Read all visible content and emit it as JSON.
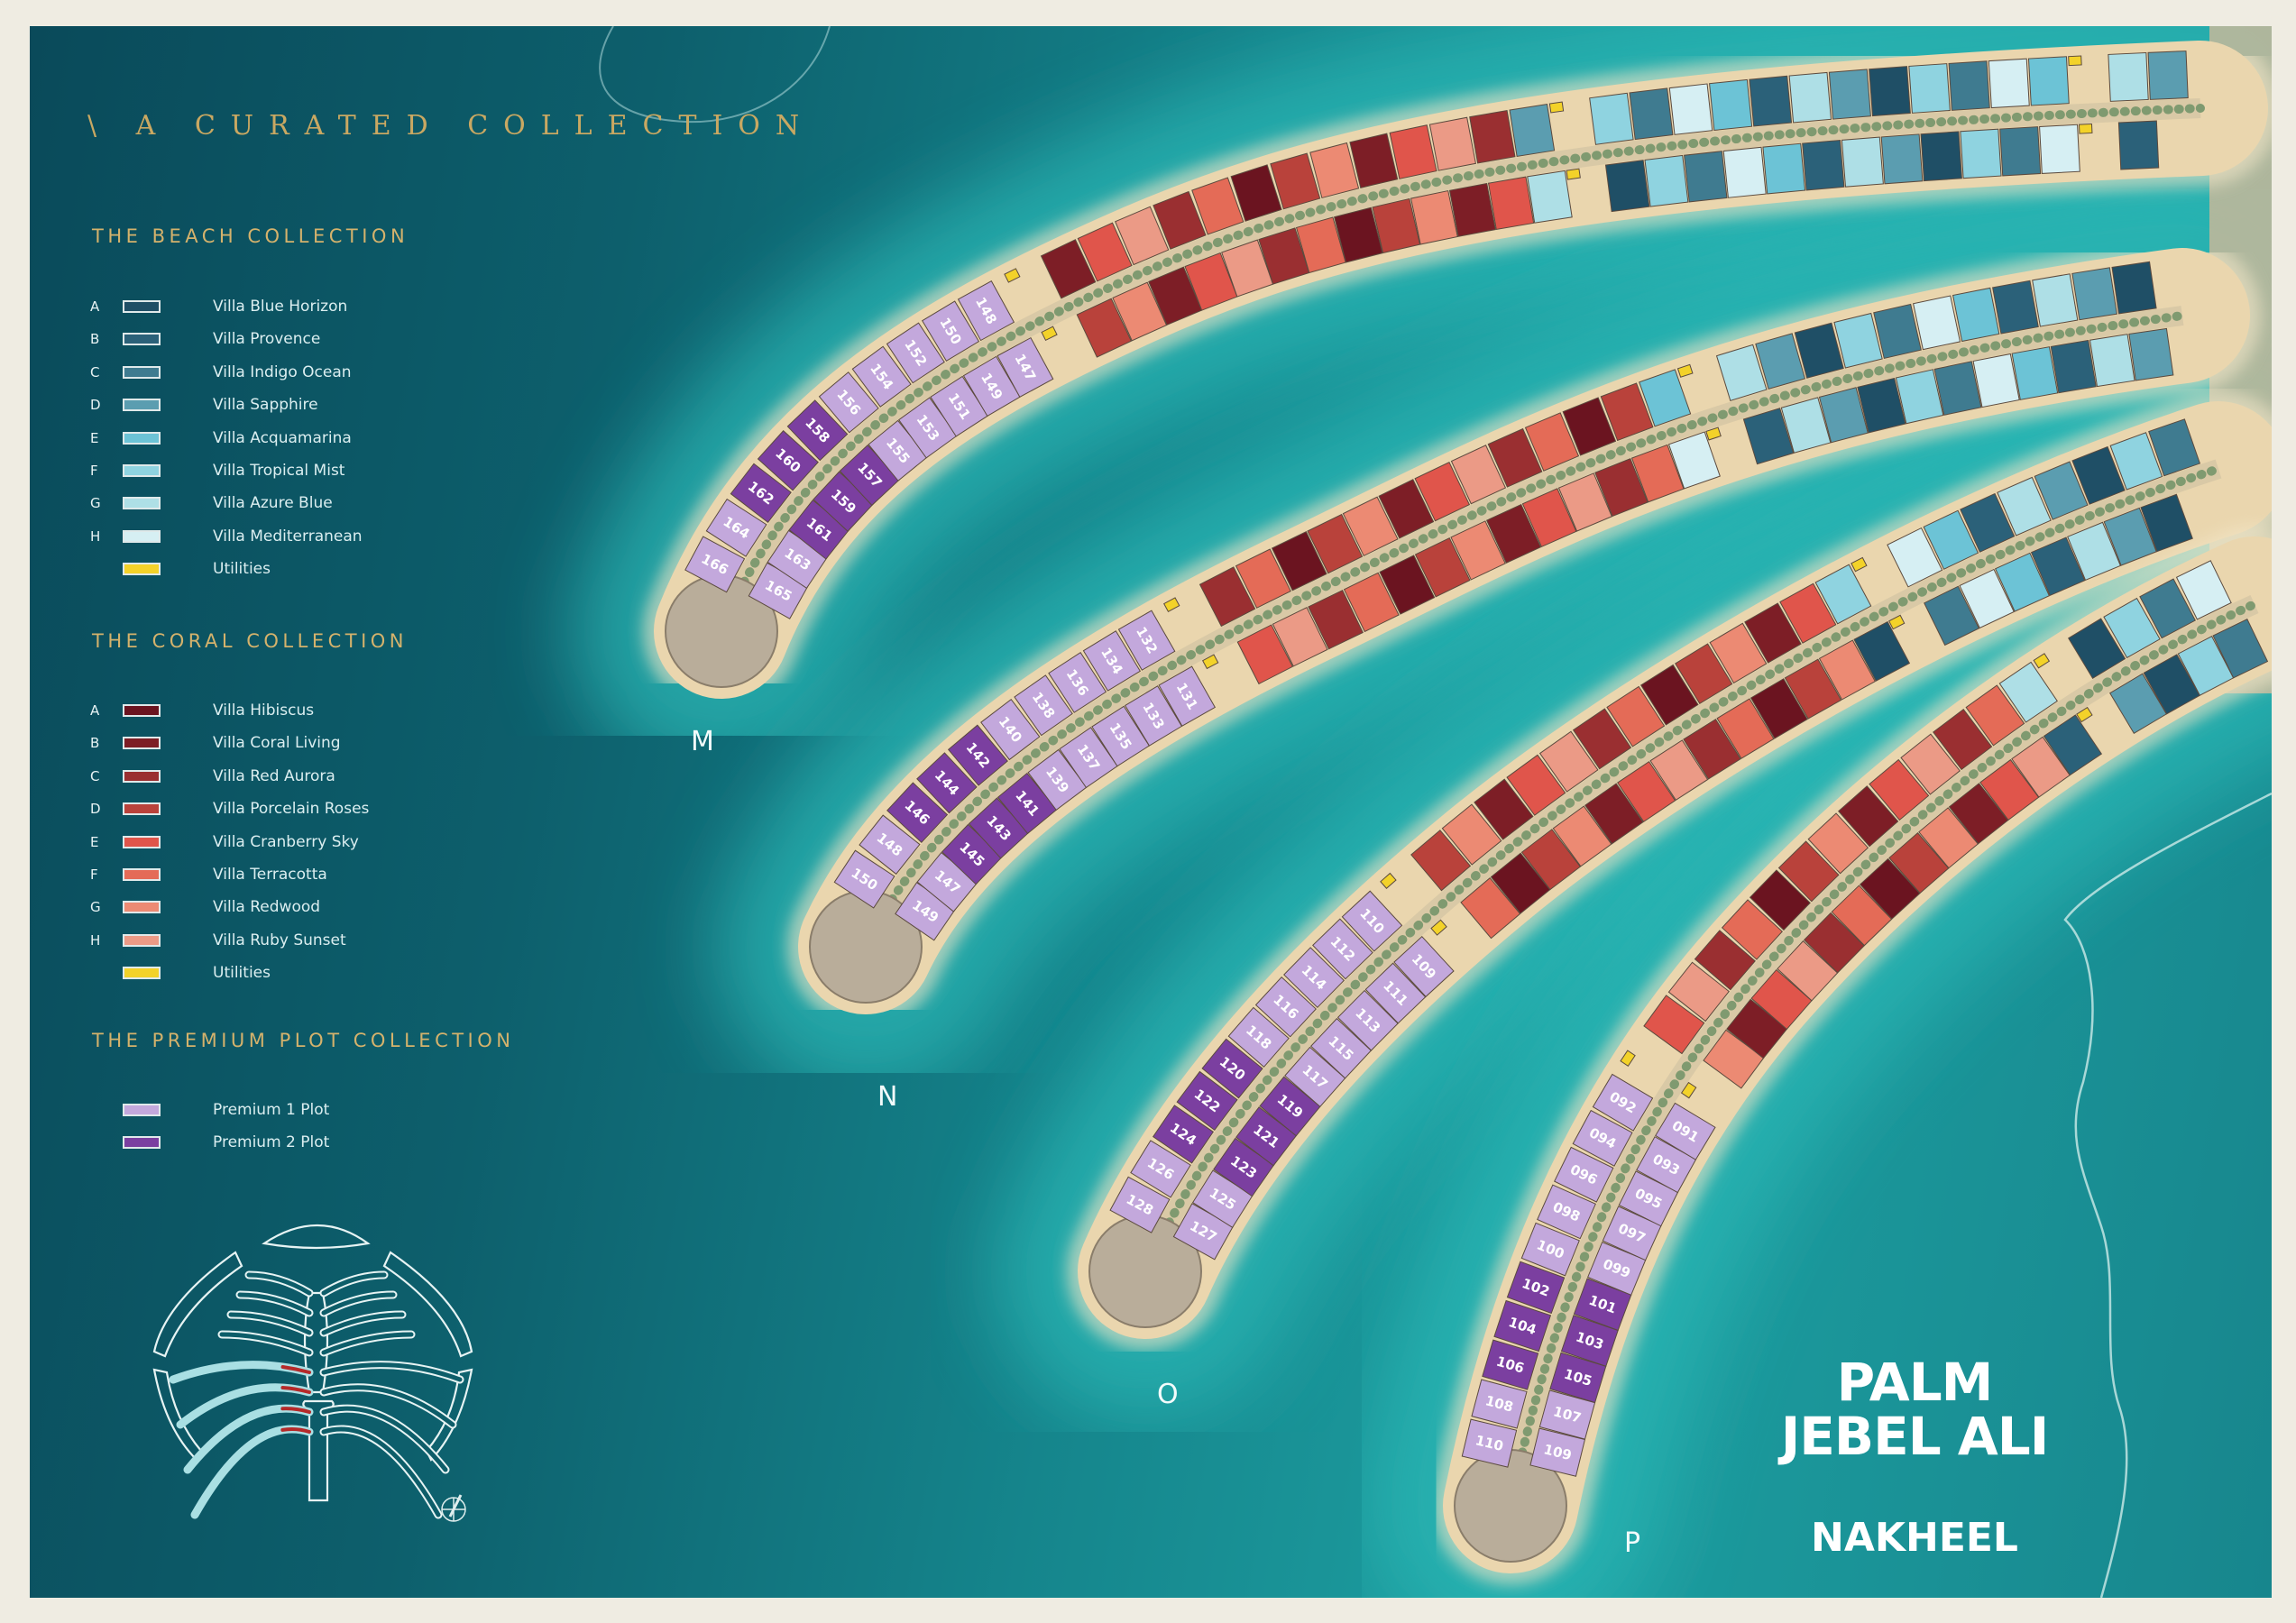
{
  "tagline": "\\ A CURATED COLLECTION",
  "beach_collection": {
    "title": "THE BEACH COLLECTION",
    "items": [
      {
        "letter": "A",
        "label": "Villa Blue Horizon",
        "color": "#1f4f66"
      },
      {
        "letter": "B",
        "label": "Villa Provence",
        "color": "#2b6179"
      },
      {
        "letter": "C",
        "label": "Villa Indigo Ocean",
        "color": "#3f7b90"
      },
      {
        "letter": "D",
        "label": "Villa Sapphire",
        "color": "#5b9db0"
      },
      {
        "letter": "E",
        "label": "Villa Acquamarina",
        "color": "#6cc3d6"
      },
      {
        "letter": "F",
        "label": "Villa Tropical Mist",
        "color": "#8fd3e0"
      },
      {
        "letter": "G",
        "label": "Villa Azure Blue",
        "color": "#aedfe6"
      },
      {
        "letter": "H",
        "label": "Villa Mediterranean",
        "color": "#d6eff3"
      },
      {
        "letter": "",
        "label": "Utilities",
        "color": "#f3d229"
      }
    ]
  },
  "coral_collection": {
    "title": "THE CORAL COLLECTION",
    "items": [
      {
        "letter": "A",
        "label": "Villa Hibiscus",
        "color": "#6b1420"
      },
      {
        "letter": "B",
        "label": "Villa Coral Living",
        "color": "#7d1e26"
      },
      {
        "letter": "C",
        "label": "Villa Red Aurora",
        "color": "#9a2f31"
      },
      {
        "letter": "D",
        "label": "Villa Porcelain Roses",
        "color": "#b9423b"
      },
      {
        "letter": "E",
        "label": "Villa Cranberry Sky",
        "color": "#e0554b"
      },
      {
        "letter": "F",
        "label": "Villa Terracotta",
        "color": "#e46b57"
      },
      {
        "letter": "G",
        "label": "Villa Redwood",
        "color": "#ec8a73"
      },
      {
        "letter": "H",
        "label": "Villa Ruby Sunset",
        "color": "#eb9a86"
      },
      {
        "letter": "",
        "label": "Utilities",
        "color": "#f3d229"
      }
    ]
  },
  "premium_collection": {
    "title": "THE PREMIUM PLOT COLLECTION",
    "items": [
      {
        "letter": "",
        "label": "Premium 1 Plot",
        "color": "#c3a8dc"
      },
      {
        "letter": "",
        "label": "Premium 2 Plot",
        "color": "#7b3fa0"
      }
    ]
  },
  "fronds": [
    {
      "label": "M",
      "outer_row": [
        "166",
        "164",
        "162",
        "160",
        "158",
        "156",
        "154",
        "152",
        "150",
        "148"
      ],
      "inner_row": [
        "165",
        "163",
        "161",
        "159",
        "157",
        "155",
        "153",
        "151",
        "149",
        "147"
      ],
      "premium2": [
        "162",
        "160",
        "158",
        "161",
        "159",
        "157"
      ]
    },
    {
      "label": "N",
      "outer_row": [
        "150",
        "148",
        "146",
        "144",
        "142",
        "140",
        "138",
        "136",
        "134",
        "132"
      ],
      "inner_row": [
        "149",
        "147",
        "145",
        "143",
        "141",
        "139",
        "137",
        "135",
        "133",
        "131"
      ],
      "premium2": [
        "146",
        "144",
        "142",
        "145",
        "143",
        "141"
      ]
    },
    {
      "label": "O",
      "outer_row": [
        "128",
        "126",
        "124",
        "122",
        "120",
        "118",
        "116",
        "114",
        "112",
        "110"
      ],
      "inner_row": [
        "127",
        "125",
        "123",
        "121",
        "119",
        "117",
        "115",
        "113",
        "111",
        "109"
      ],
      "premium2": [
        "124",
        "122",
        "120",
        "123",
        "121",
        "119"
      ]
    },
    {
      "label": "P",
      "outer_row": [
        "110",
        "108",
        "106",
        "104",
        "102",
        "100",
        "098",
        "096",
        "094",
        "092"
      ],
      "inner_row": [
        "109",
        "107",
        "105",
        "103",
        "101",
        "099",
        "097",
        "095",
        "093",
        "091"
      ],
      "premium2": [
        "106",
        "104",
        "102",
        "105",
        "103",
        "101"
      ]
    }
  ],
  "logo": {
    "line1": "PALM",
    "line2": "JEBEL ALI",
    "developer": "NAKHEEL"
  },
  "colors": {
    "sand": "#ead6ae",
    "water_dark": "#0a4a5a",
    "water_light": "#2cb7b5",
    "legend_gold": "#c9a862",
    "road": "#d9c9a6",
    "tip": "#b9ad9a"
  }
}
